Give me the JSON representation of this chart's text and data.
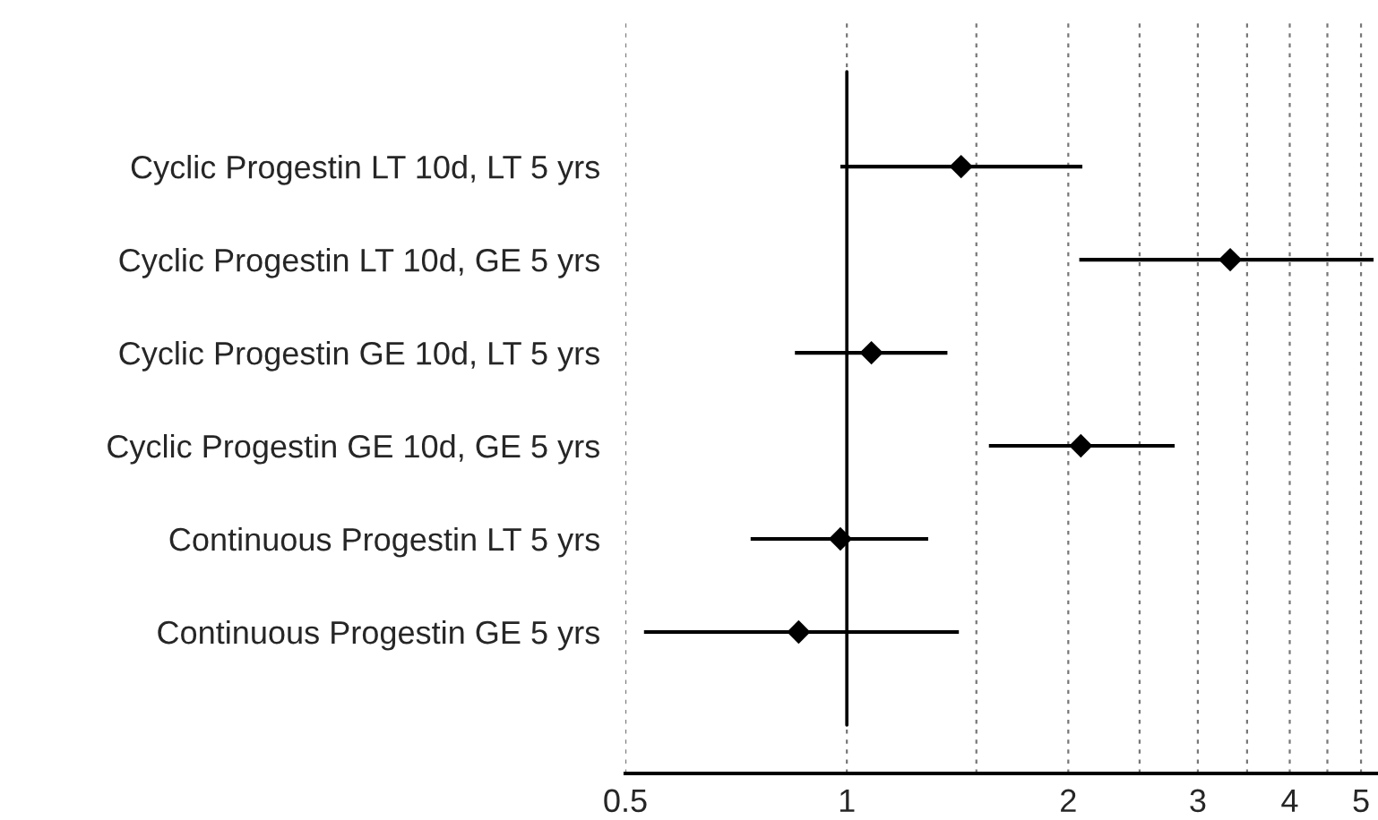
{
  "chart_data": {
    "type": "scatter",
    "orientation": "horizontal",
    "log": "x",
    "categories": [
      "Cyclic Progestin LT 10d, LT 5 yrs",
      "Cyclic Progestin LT 10d, GE 5 yrs",
      "Cyclic Progestin GE 10d, LT 5 yrs",
      "Cyclic Progestin GE 10d, GE 5 yrs",
      "Continuous Progestin LT 5 yrs",
      "Continuous Progestin GE 5 yrs"
    ],
    "values": [
      1.43,
      3.32,
      1.08,
      2.08,
      0.98,
      0.86
    ],
    "errors": [
      [
        0.98,
        2.09
      ],
      [
        2.07,
        5.2
      ],
      [
        0.85,
        1.37
      ],
      [
        1.56,
        2.79
      ],
      [
        0.74,
        1.29
      ],
      [
        0.53,
        1.42
      ]
    ],
    "color": "#000000",
    "marker": "diamond",
    "xlim": [
      0.5,
      5.25
    ],
    "xticks": [
      0.5,
      1,
      {
        "value": 1.5,
        "label": null
      },
      2,
      {
        "value": 2.5,
        "label": null
      },
      3,
      {
        "value": 3.5,
        "label": null
      },
      4,
      {
        "value": 4.5,
        "label": null
      },
      5
    ],
    "grid": "x",
    "ref_lines": [
      {
        "axis": "x",
        "value": 1,
        "color": "#000000",
        "line_style": "solid"
      }
    ]
  }
}
